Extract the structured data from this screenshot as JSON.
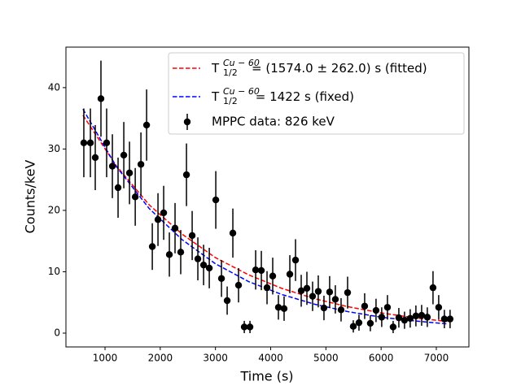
{
  "chart_data": {
    "type": "errorbar",
    "xlabel": "Time (s)",
    "ylabel": "Counts/keV",
    "xlim": [
      292,
      7590
    ],
    "ylim": [
      -2.25,
      46.6
    ],
    "xticks": [
      1000,
      2000,
      3000,
      4000,
      5000,
      6000,
      7000
    ],
    "yticks": [
      0,
      10,
      20,
      30,
      40
    ],
    "legend": "upper right",
    "series": [
      {
        "name": "T_{1/2}^{Cu-60}= (1574.0 ± 262.0) s (fitted)",
        "color": "#ff0000",
        "type": "line",
        "linestyle": "dashed",
        "x": [
          600,
          1200,
          1800,
          2400,
          3000,
          3600,
          4200,
          4800,
          5400,
          6000,
          6600,
          7200
        ],
        "values": [
          35.5,
          27.3,
          20.9,
          16.1,
          12.3,
          9.5,
          7.3,
          5.6,
          4.3,
          3.3,
          2.5,
          1.9
        ]
      },
      {
        "name": "T_{1/2}^{Cu-60} = 1422 s (fixed)",
        "color": "#0000ff",
        "type": "line",
        "linestyle": "dashed",
        "x": [
          600,
          1200,
          1800,
          2400,
          3000,
          3600,
          4200,
          4800,
          5400,
          6000,
          6600,
          7200
        ],
        "values": [
          36.5,
          27.2,
          20.3,
          15.2,
          11.3,
          8.4,
          6.3,
          4.7,
          3.5,
          2.6,
          2.0,
          1.5
        ]
      },
      {
        "name": "MPPC data: 826 keV",
        "color": "#000000",
        "type": "errorbar",
        "x": [
          616,
          735,
          823,
          926,
          1029,
          1133,
          1236,
          1340,
          1443,
          1547,
          1650,
          1753,
          1856,
          1959,
          2062,
          2165,
          2268,
          2371,
          2475,
          2578,
          2681,
          2785,
          2888,
          3006,
          3109,
          3212,
          3315,
          3418,
          3522,
          3625,
          3728,
          3831,
          3934,
          4037,
          4140,
          4243,
          4347,
          4450,
          4553,
          4656,
          4759,
          4862,
          4965,
          5068,
          5171,
          5275,
          5393,
          5496,
          5599,
          5702,
          5805,
          5908,
          6011,
          6115,
          6218,
          6321,
          6424,
          6527,
          6630,
          6734,
          6837,
          6940,
          7043,
          7146,
          7249
        ],
        "values": [
          31,
          31,
          28.6,
          38.2,
          31,
          27.2,
          23.7,
          29,
          26.1,
          22.2,
          27.5,
          33.9,
          14.1,
          18.5,
          19.6,
          12.8,
          17.1,
          13.2,
          25.8,
          15.9,
          12.1,
          11.1,
          10.6,
          21.7,
          8.9,
          5.3,
          16.3,
          7.8,
          1,
          1,
          10.3,
          10.2,
          7.4,
          9.3,
          4.2,
          4,
          9.6,
          11.9,
          6.9,
          7.3,
          6,
          6.8,
          4.1,
          6.7,
          5.5,
          3.8,
          6.6,
          1.1,
          1.7,
          4.4,
          1.6,
          3.7,
          2.6,
          4.2,
          1,
          2.5,
          2.1,
          2.4,
          2.8,
          2.9,
          2.6,
          7.4,
          4.2,
          2.3,
          2.3
        ],
        "errors": [
          5.6,
          5.6,
          5.3,
          6.2,
          5.6,
          5.2,
          4.9,
          5.4,
          5.1,
          4.7,
          5.2,
          5.8,
          3.8,
          4.3,
          4.4,
          3.6,
          4.1,
          3.6,
          5.1,
          4.0,
          3.5,
          3.3,
          3.3,
          4.7,
          3.0,
          2.3,
          4.0,
          2.8,
          1,
          1,
          3.2,
          3.2,
          2.7,
          3.0,
          2.0,
          2.0,
          3.1,
          3.4,
          2.6,
          2.7,
          2.4,
          2.6,
          2.0,
          2.6,
          2.3,
          1.9,
          2.6,
          1.0,
          1.3,
          2.1,
          1.3,
          1.9,
          1.6,
          2.0,
          1.0,
          1.6,
          1.4,
          1.5,
          1.7,
          1.7,
          1.6,
          2.7,
          2.0,
          1.5,
          1.5
        ]
      }
    ]
  }
}
